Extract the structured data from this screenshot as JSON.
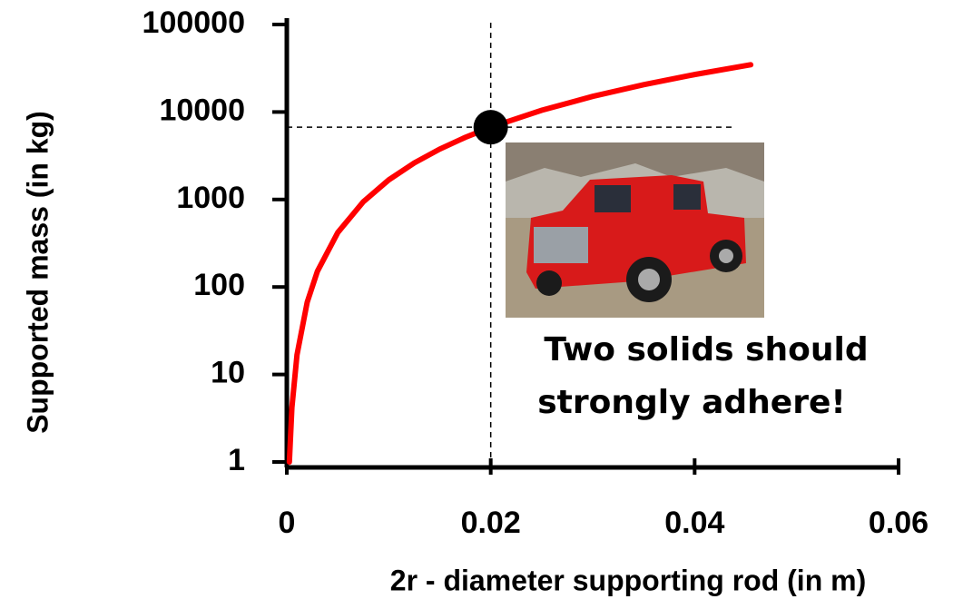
{
  "chart_data": {
    "type": "line",
    "xlabel": "2r - diameter supporting  rod (in m)",
    "ylabel": "Supported mass (in kg)",
    "x": [
      0.00025,
      0.0005,
      0.001,
      0.002,
      0.003,
      0.005,
      0.0075,
      0.01,
      0.0125,
      0.015,
      0.0175,
      0.02,
      0.025,
      0.03,
      0.035,
      0.04,
      0.0455
    ],
    "series": [
      {
        "color": "#ff0000",
        "values": [
          1,
          4.2,
          16.8,
          67,
          151,
          419,
          942,
          1675,
          2617,
          3769,
          5130,
          6700,
          10469,
          15075,
          20519,
          26800,
          34676
        ]
      }
    ],
    "marker": {
      "x": 0.02,
      "y": 6700
    },
    "xlim": [
      0,
      0.06
    ],
    "xticks": [
      0,
      0.02,
      0.04,
      0.06
    ],
    "ylim": [
      1,
      100000
    ],
    "yticks": [
      1,
      10,
      100,
      1000,
      10000,
      100000
    ],
    "log_y": true,
    "annotation": [
      "Two solids should",
      "strongly adhere!"
    ]
  }
}
